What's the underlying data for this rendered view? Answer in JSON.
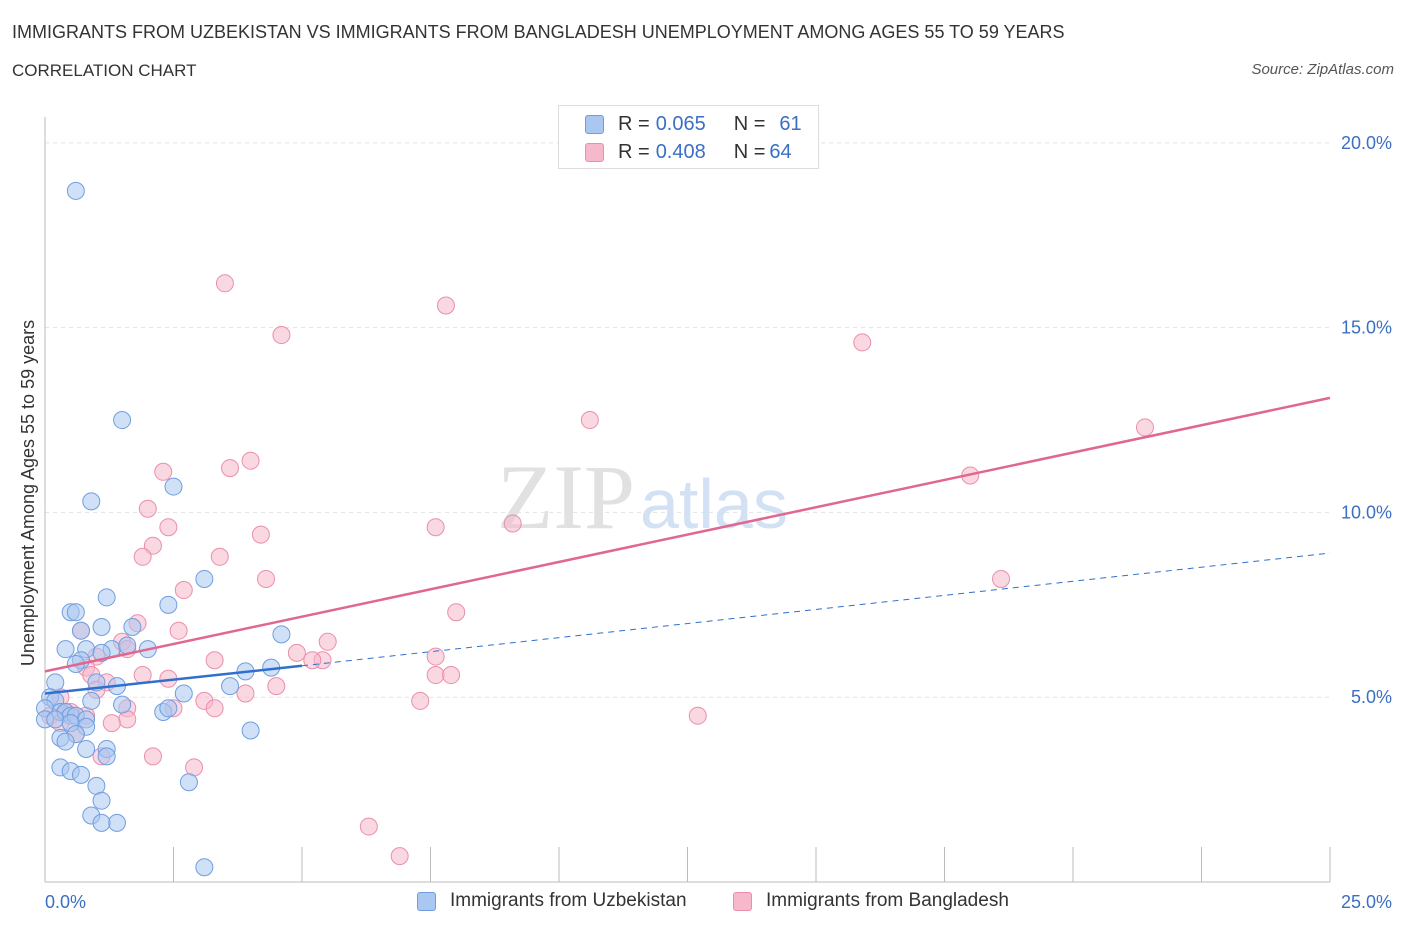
{
  "title": "IMMIGRANTS FROM UZBEKISTAN VS IMMIGRANTS FROM BANGLADESH UNEMPLOYMENT AMONG AGES 55 TO 59 YEARS",
  "subtitle": "CORRELATION CHART",
  "source": "Source: ZipAtlas.com",
  "watermark": {
    "zip": "ZIP",
    "atlas": "atlas"
  },
  "legend": {
    "rows": [
      {
        "r_label": "R = ",
        "r_value": "0.065",
        "n_label": "N = ",
        "n_value": "61"
      },
      {
        "r_label": "R = ",
        "r_value": "0.408",
        "n_label": "N = ",
        "n_value": "64"
      }
    ]
  },
  "colors": {
    "series1_fill": "#a9c7f0",
    "series1_stroke": "#6f9ee0",
    "series1_line": "#2f6fce",
    "series2_fill": "#f6b8cb",
    "series2_stroke": "#eb8eab",
    "series2_line": "#e0678f",
    "axis_value": "#3a6fc4",
    "grid": "#e2e2e2"
  },
  "chart_data": {
    "type": "scatter",
    "title": "IMMIGRANTS FROM UZBEKISTAN VS IMMIGRANTS FROM BANGLADESH UNEMPLOYMENT AMONG AGES 55 TO 59 YEARS",
    "xlabel": "",
    "ylabel": "Unemployment Among Ages 55 to 59 years",
    "xlim": [
      0,
      25
    ],
    "ylim": [
      0,
      20.7
    ],
    "x_tick_labels": [
      "0.0%",
      "25.0%"
    ],
    "y_ticks": [
      5,
      10,
      15,
      20
    ],
    "y_tick_labels": [
      "5.0%",
      "10.0%",
      "15.0%",
      "20.0%"
    ],
    "grid": true,
    "legend_position": "top-center",
    "series": [
      {
        "name": "Immigrants from Uzbekistan",
        "R": 0.065,
        "N": 61,
        "trend": {
          "x0": 0.0,
          "y0": 5.1,
          "x1": 5.0,
          "y1": 5.85
        },
        "trend_dashed_extension": {
          "x0": 5.0,
          "y0": 5.85,
          "x1": 25.0,
          "y1": 8.9
        },
        "points": [
          [
            0.6,
            18.7
          ],
          [
            1.5,
            12.5
          ],
          [
            2.5,
            10.7
          ],
          [
            0.9,
            10.3
          ],
          [
            3.1,
            8.2
          ],
          [
            1.2,
            7.7
          ],
          [
            2.4,
            7.5
          ],
          [
            0.5,
            7.3
          ],
          [
            0.6,
            7.3
          ],
          [
            1.1,
            6.9
          ],
          [
            1.7,
            6.9
          ],
          [
            0.7,
            6.8
          ],
          [
            4.6,
            6.7
          ],
          [
            0.4,
            6.3
          ],
          [
            0.8,
            6.3
          ],
          [
            1.3,
            6.3
          ],
          [
            1.6,
            6.4
          ],
          [
            2.0,
            6.3
          ],
          [
            1.1,
            6.2
          ],
          [
            0.7,
            6.0
          ],
          [
            0.6,
            5.9
          ],
          [
            4.4,
            5.8
          ],
          [
            3.9,
            5.7
          ],
          [
            1.0,
            5.4
          ],
          [
            1.4,
            5.3
          ],
          [
            3.6,
            5.3
          ],
          [
            0.2,
            5.4
          ],
          [
            2.7,
            5.1
          ],
          [
            0.1,
            5.0
          ],
          [
            0.2,
            4.9
          ],
          [
            0.9,
            4.9
          ],
          [
            1.5,
            4.8
          ],
          [
            0.0,
            4.7
          ],
          [
            0.3,
            4.6
          ],
          [
            0.4,
            4.6
          ],
          [
            0.5,
            4.5
          ],
          [
            0.6,
            4.5
          ],
          [
            0.8,
            4.4
          ],
          [
            0.0,
            4.4
          ],
          [
            0.2,
            4.4
          ],
          [
            0.5,
            4.3
          ],
          [
            0.8,
            4.2
          ],
          [
            2.3,
            4.6
          ],
          [
            2.4,
            4.7
          ],
          [
            4.0,
            4.1
          ],
          [
            0.6,
            4.0
          ],
          [
            0.3,
            3.9
          ],
          [
            0.4,
            3.8
          ],
          [
            1.2,
            3.6
          ],
          [
            0.8,
            3.6
          ],
          [
            1.2,
            3.4
          ],
          [
            0.3,
            3.1
          ],
          [
            0.5,
            3.0
          ],
          [
            0.7,
            2.9
          ],
          [
            2.8,
            2.7
          ],
          [
            1.0,
            2.6
          ],
          [
            1.1,
            2.2
          ],
          [
            0.9,
            1.8
          ],
          [
            1.4,
            1.6
          ],
          [
            1.1,
            1.6
          ],
          [
            3.1,
            0.4
          ]
        ]
      },
      {
        "name": "Immigrants from Bangladesh",
        "R": 0.408,
        "N": 64,
        "trend": {
          "x0": 0.0,
          "y0": 5.7,
          "x1": 25.0,
          "y1": 13.1
        },
        "points": [
          [
            3.5,
            16.2
          ],
          [
            7.8,
            15.6
          ],
          [
            4.6,
            14.8
          ],
          [
            15.9,
            14.6
          ],
          [
            10.6,
            12.5
          ],
          [
            21.4,
            12.3
          ],
          [
            4.0,
            11.4
          ],
          [
            3.6,
            11.2
          ],
          [
            2.3,
            11.1
          ],
          [
            18.0,
            11.0
          ],
          [
            2.0,
            10.1
          ],
          [
            9.1,
            9.7
          ],
          [
            7.6,
            9.6
          ],
          [
            2.4,
            9.6
          ],
          [
            4.2,
            9.4
          ],
          [
            2.1,
            9.1
          ],
          [
            1.9,
            8.8
          ],
          [
            3.4,
            8.8
          ],
          [
            4.3,
            8.2
          ],
          [
            18.6,
            8.2
          ],
          [
            2.7,
            7.9
          ],
          [
            8.0,
            7.3
          ],
          [
            1.8,
            7.0
          ],
          [
            0.7,
            6.8
          ],
          [
            2.6,
            6.8
          ],
          [
            5.5,
            6.5
          ],
          [
            1.5,
            6.5
          ],
          [
            1.6,
            6.3
          ],
          [
            4.9,
            6.2
          ],
          [
            1.0,
            6.1
          ],
          [
            7.6,
            6.1
          ],
          [
            5.4,
            6.0
          ],
          [
            5.2,
            6.0
          ],
          [
            3.3,
            6.0
          ],
          [
            0.8,
            5.8
          ],
          [
            1.9,
            5.6
          ],
          [
            0.9,
            5.6
          ],
          [
            7.6,
            5.6
          ],
          [
            7.9,
            5.6
          ],
          [
            2.4,
            5.5
          ],
          [
            1.2,
            5.4
          ],
          [
            4.5,
            5.3
          ],
          [
            1.0,
            5.2
          ],
          [
            0.3,
            5.0
          ],
          [
            3.9,
            5.1
          ],
          [
            3.1,
            4.9
          ],
          [
            7.3,
            4.9
          ],
          [
            2.5,
            4.7
          ],
          [
            3.3,
            4.7
          ],
          [
            1.6,
            4.7
          ],
          [
            0.4,
            4.6
          ],
          [
            0.5,
            4.6
          ],
          [
            0.1,
            4.5
          ],
          [
            0.8,
            4.5
          ],
          [
            12.7,
            4.5
          ],
          [
            0.3,
            4.3
          ],
          [
            1.6,
            4.4
          ],
          [
            1.3,
            4.3
          ],
          [
            0.6,
            4.0
          ],
          [
            1.1,
            3.4
          ],
          [
            2.1,
            3.4
          ],
          [
            2.9,
            3.1
          ],
          [
            6.3,
            1.5
          ],
          [
            6.9,
            0.7
          ]
        ]
      }
    ]
  },
  "bottom_legend": [
    "Immigrants from Uzbekistan",
    "Immigrants from Bangladesh"
  ]
}
